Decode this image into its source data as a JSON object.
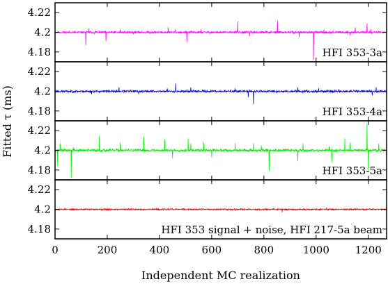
{
  "chart_data": {
    "type": "line",
    "ylabel": "Fitted τ (ms)",
    "xlabel": "Independent MC realization",
    "xlim": [
      0,
      1270
    ],
    "ylim": [
      4.17,
      4.23
    ],
    "grid": false,
    "x_ticks": [
      0,
      200,
      400,
      600,
      800,
      1000,
      1200
    ],
    "x_tick_labels": [
      "0",
      "200",
      "400",
      "600",
      "800",
      "1000",
      "1200"
    ],
    "y_ticks": [
      4.18,
      4.2,
      4.22
    ],
    "y_tick_labels": [
      "4.18",
      "4.2",
      "4.22"
    ],
    "n_points": 1270,
    "baseline": 4.2,
    "panels": [
      {
        "label": "HFI 353-3a",
        "color": "#ff00ff",
        "noise": 0.0007,
        "seed": 11,
        "spikes": [
          [
            118,
            4.187
          ],
          [
            130,
            4.204
          ],
          [
            150,
            4.198
          ],
          [
            195,
            4.191
          ],
          [
            250,
            4.203
          ],
          [
            300,
            4.198
          ],
          [
            433,
            4.205
          ],
          [
            460,
            4.203
          ],
          [
            505,
            4.19
          ],
          [
            560,
            4.203
          ],
          [
            700,
            4.211
          ],
          [
            745,
            4.196
          ],
          [
            852,
            4.212
          ],
          [
            935,
            4.195
          ],
          [
            990,
            4.172
          ],
          [
            1030,
            4.203
          ],
          [
            1130,
            4.197
          ],
          [
            1150,
            4.205
          ],
          [
            1195,
            4.209
          ],
          [
            1210,
            4.203
          ]
        ]
      },
      {
        "label": "HFI 353-4a",
        "color": "#0000dd",
        "noise": 0.0007,
        "seed": 23,
        "spikes": [
          [
            140,
            4.197
          ],
          [
            245,
            4.204
          ],
          [
            320,
            4.197
          ],
          [
            430,
            4.203
          ],
          [
            462,
            4.208
          ],
          [
            520,
            4.204
          ],
          [
            690,
            4.203
          ],
          [
            740,
            4.194
          ],
          [
            760,
            4.187
          ],
          [
            930,
            4.204
          ],
          [
            1010,
            4.203
          ],
          [
            1215,
            4.196
          ],
          [
            1230,
            4.204
          ]
        ]
      },
      {
        "label": "HFI 353-5a",
        "color": "#00ee00",
        "noise": 0.0009,
        "seed": 37,
        "spikes": [
          [
            10,
            4.184
          ],
          [
            20,
            4.207
          ],
          [
            62,
            4.172
          ],
          [
            70,
            4.203
          ],
          [
            170,
            4.215
          ],
          [
            250,
            4.208
          ],
          [
            340,
            4.214
          ],
          [
            420,
            4.211
          ],
          [
            450,
            4.192
          ],
          [
            510,
            4.212
          ],
          [
            520,
            4.207
          ],
          [
            570,
            4.208
          ],
          [
            600,
            4.193
          ],
          [
            690,
            4.207
          ],
          [
            760,
            4.207
          ],
          [
            790,
            4.205
          ],
          [
            820,
            4.179
          ],
          [
            930,
            4.189
          ],
          [
            950,
            4.207
          ],
          [
            1050,
            4.204
          ],
          [
            1060,
            4.188
          ],
          [
            1110,
            4.212
          ],
          [
            1130,
            4.208
          ],
          [
            1195,
            4.227
          ],
          [
            1200,
            4.18
          ],
          [
            1240,
            4.207
          ]
        ]
      },
      {
        "label": "HFI 353 signal + noise, HFI 217-5a beam",
        "color": "#ff0000",
        "noise": 0.00045,
        "seed": 53,
        "spikes": [
          [
            870,
            4.197
          ],
          [
            1040,
            4.202
          ]
        ]
      }
    ]
  }
}
